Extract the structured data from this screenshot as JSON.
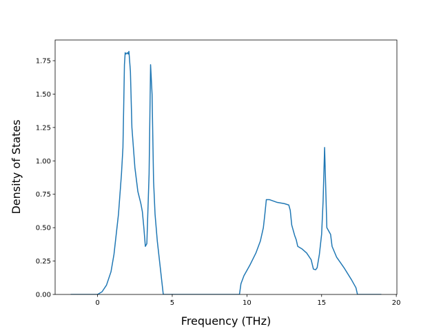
{
  "chart_data": {
    "type": "line",
    "xlabel": "Frequency (THz)",
    "ylabel": "Density of States",
    "color": "#1f77b4",
    "x": [
      -1.8,
      0,
      0.3,
      0.6,
      0.9,
      1.1,
      1.2,
      1.4,
      1.6,
      1.7,
      1.75,
      1.8,
      1.85,
      1.9,
      2.0,
      2.05,
      2.1,
      2.2,
      2.3,
      2.5,
      2.7,
      2.9,
      3.0,
      3.1,
      3.2,
      3.3,
      3.45,
      3.55,
      3.65,
      3.75,
      3.85,
      4.0,
      4.2,
      4.3,
      4.4,
      9.5,
      9.6,
      9.8,
      10.2,
      10.6,
      10.9,
      11.1,
      11.2,
      11.3,
      11.5,
      12.0,
      12.5,
      12.8,
      12.9,
      13.0,
      13.2,
      13.3,
      13.4,
      13.7,
      14.0,
      14.3,
      14.45,
      14.6,
      14.7,
      14.85,
      15.0,
      15.1,
      15.2,
      15.3,
      15.35,
      15.5,
      15.6,
      15.7,
      16.0,
      16.5,
      17.0,
      17.3,
      17.4,
      19.0
    ],
    "values": [
      0,
      0,
      0.02,
      0.07,
      0.17,
      0.3,
      0.4,
      0.6,
      0.9,
      1.1,
      1.4,
      1.72,
      1.81,
      1.8,
      1.81,
      1.8,
      1.82,
      1.67,
      1.25,
      0.95,
      0.77,
      0.68,
      0.62,
      0.5,
      0.36,
      0.38,
      0.9,
      1.72,
      1.5,
      0.85,
      0.6,
      0.4,
      0.2,
      0.1,
      0,
      0,
      0.08,
      0.14,
      0.22,
      0.31,
      0.4,
      0.5,
      0.6,
      0.71,
      0.71,
      0.69,
      0.68,
      0.67,
      0.63,
      0.52,
      0.44,
      0.41,
      0.36,
      0.34,
      0.31,
      0.26,
      0.19,
      0.185,
      0.2,
      0.3,
      0.45,
      0.7,
      1.1,
      0.7,
      0.5,
      0.47,
      0.45,
      0.36,
      0.28,
      0.2,
      0.11,
      0.05,
      0,
      0
    ],
    "xlim": [
      -2.84,
      20.04
    ],
    "xticks": [
      0,
      5,
      10,
      15,
      20
    ],
    "ylim": [
      0,
      1.905
    ],
    "yticks": [
      {
        "value": 0,
        "label": "0.00"
      },
      {
        "value": 0.25,
        "label": "0.25"
      },
      {
        "value": 0.5,
        "label": "0.50"
      },
      {
        "value": 0.75,
        "label": "0.75"
      },
      {
        "value": 1,
        "label": "1.00"
      },
      {
        "value": 1.25,
        "label": "1.25"
      },
      {
        "value": 1.5,
        "label": "1.50"
      },
      {
        "value": 1.75,
        "label": "1.75"
      }
    ]
  }
}
